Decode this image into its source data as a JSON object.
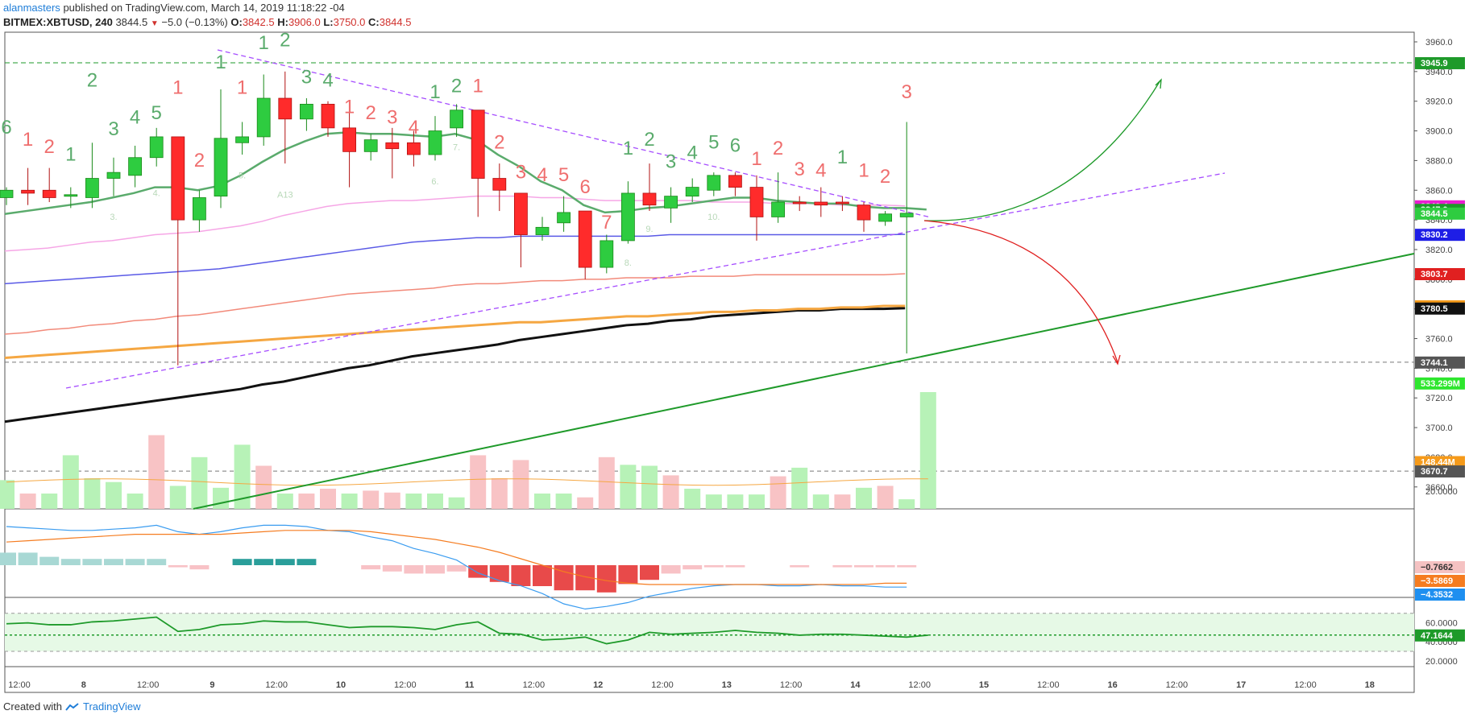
{
  "header": {
    "author": "alanmasters",
    "published": "published on TradingView.com, March 14, 2019 11:18:22 -04",
    "symbol": "BITMEX:XBTUSD, 240",
    "last": "3844.5",
    "change": "−5.0 (−0.13%)",
    "open_label": "O:",
    "open": "3842.5",
    "high_label": "H:",
    "high": "3906.0",
    "low_label": "L:",
    "low": "3750.0",
    "close_label": "C:",
    "close": "3844.5"
  },
  "footer": {
    "created_with": "Created with",
    "brand": "TradingView"
  },
  "colors": {
    "up": "#2ecc40",
    "down": "#ff2b2b",
    "ema_green": "#5aab6c",
    "ema_pink": "#f6a6e6",
    "ema_blue": "#5a5ae6",
    "ema_salmon": "#f28a7a",
    "ema_orange": "#f5a742",
    "ema_black": "#111111",
    "trend": "#1f9a2a",
    "dashed_purple": "#a64dff",
    "td_green": "#5aab6c",
    "td_red": "#ef6e6e"
  },
  "chart_data": {
    "type": "candlestick",
    "y_range": [
      3650,
      3965
    ],
    "y_ticks": [
      "3960.0",
      "3940.0",
      "3920.0",
      "3900.0",
      "3880.0",
      "3860.0",
      "3840.0",
      "3820.0",
      "3800.0",
      "3780.0",
      "3760.0",
      "3740.0",
      "3720.0",
      "3700.0",
      "3680.0",
      "3660.0"
    ],
    "x_ticks": [
      "12:00",
      "8",
      "12:00",
      "9",
      "12:00",
      "10",
      "12:00",
      "11",
      "12:00",
      "12",
      "12:00",
      "13",
      "12:00",
      "14",
      "12:00",
      "15",
      "12:00",
      "16",
      "12:00",
      "17",
      "12:00",
      "18"
    ],
    "price_tags": [
      {
        "text": "3945.9",
        "price": 3945.9,
        "color": "#1e9a2a"
      },
      {
        "text": "3849.4",
        "price": 3849.4,
        "color": "#e91ed0"
      },
      {
        "text": "3847.0",
        "price": 3847.0,
        "color": "#1e9a2a"
      },
      {
        "text": "3844.5",
        "price": 3844.5,
        "color": "#2ecc40"
      },
      {
        "text": "3830.2",
        "price": 3830.2,
        "color": "#1e1ee6"
      },
      {
        "text": "3803.7",
        "price": 3803.7,
        "color": "#e02020"
      },
      {
        "text": "3782.0",
        "price": 3782.0,
        "color": "#f59a1a"
      },
      {
        "text": "3780.5",
        "price": 3780.5,
        "color": "#111111"
      },
      {
        "text": "3744.1",
        "price": 3744.1,
        "color": "#555555"
      },
      {
        "text": "533.299M",
        "price": 3730.0,
        "color": "#2ee62e"
      },
      {
        "text": "148.44M",
        "price": 3677.0,
        "color": "#f59a1a"
      },
      {
        "text": "3670.7",
        "price": 3670.7,
        "color": "#555555"
      }
    ],
    "candles": [
      {
        "x": 0,
        "o": 3855,
        "h": 3862,
        "l": 3850,
        "c": 3860
      },
      {
        "x": 1,
        "o": 3860,
        "h": 3875,
        "l": 3850,
        "c": 3858
      },
      {
        "x": 2,
        "o": 3860,
        "h": 3875,
        "l": 3852,
        "c": 3855
      },
      {
        "x": 3,
        "o": 3856,
        "h": 3862,
        "l": 3848,
        "c": 3857
      },
      {
        "x": 4,
        "o": 3855,
        "h": 3892,
        "l": 3848,
        "c": 3868
      },
      {
        "x": 5,
        "o": 3868,
        "h": 3882,
        "l": 3856,
        "c": 3872
      },
      {
        "x": 6,
        "o": 3870,
        "h": 3890,
        "l": 3862,
        "c": 3882
      },
      {
        "x": 7,
        "o": 3882,
        "h": 3902,
        "l": 3876,
        "c": 3896
      },
      {
        "x": 8,
        "o": 3896,
        "h": 3896,
        "l": 3742,
        "c": 3840
      },
      {
        "x": 9,
        "o": 3840,
        "h": 3860,
        "l": 3832,
        "c": 3855
      },
      {
        "x": 10,
        "o": 3856,
        "h": 3928,
        "l": 3848,
        "c": 3895
      },
      {
        "x": 11,
        "o": 3892,
        "h": 3906,
        "l": 3884,
        "c": 3896
      },
      {
        "x": 12,
        "o": 3896,
        "h": 3938,
        "l": 3890,
        "c": 3922
      },
      {
        "x": 13,
        "o": 3922,
        "h": 3940,
        "l": 3878,
        "c": 3908
      },
      {
        "x": 14,
        "o": 3908,
        "h": 3922,
        "l": 3900,
        "c": 3918
      },
      {
        "x": 15,
        "o": 3918,
        "h": 3920,
        "l": 3896,
        "c": 3902
      },
      {
        "x": 16,
        "o": 3902,
        "h": 3914,
        "l": 3862,
        "c": 3886
      },
      {
        "x": 17,
        "o": 3886,
        "h": 3898,
        "l": 3880,
        "c": 3894
      },
      {
        "x": 18,
        "o": 3892,
        "h": 3902,
        "l": 3868,
        "c": 3888
      },
      {
        "x": 19,
        "o": 3892,
        "h": 3900,
        "l": 3876,
        "c": 3884
      },
      {
        "x": 20,
        "o": 3884,
        "h": 3910,
        "l": 3880,
        "c": 3900
      },
      {
        "x": 21,
        "o": 3902,
        "h": 3918,
        "l": 3896,
        "c": 3914
      },
      {
        "x": 22,
        "o": 3914,
        "h": 3914,
        "l": 3842,
        "c": 3868
      },
      {
        "x": 23,
        "o": 3868,
        "h": 3878,
        "l": 3846,
        "c": 3860
      },
      {
        "x": 24,
        "o": 3858,
        "h": 3858,
        "l": 3808,
        "c": 3830
      },
      {
        "x": 25,
        "o": 3830,
        "h": 3842,
        "l": 3826,
        "c": 3835
      },
      {
        "x": 26,
        "o": 3838,
        "h": 3856,
        "l": 3832,
        "c": 3845
      },
      {
        "x": 27,
        "o": 3846,
        "h": 3846,
        "l": 3800,
        "c": 3808
      },
      {
        "x": 28,
        "o": 3808,
        "h": 3830,
        "l": 3804,
        "c": 3826
      },
      {
        "x": 29,
        "o": 3826,
        "h": 3866,
        "l": 3824,
        "c": 3858
      },
      {
        "x": 30,
        "o": 3858,
        "h": 3878,
        "l": 3846,
        "c": 3850
      },
      {
        "x": 31,
        "o": 3848,
        "h": 3862,
        "l": 3838,
        "c": 3856
      },
      {
        "x": 32,
        "o": 3856,
        "h": 3868,
        "l": 3852,
        "c": 3862
      },
      {
        "x": 33,
        "o": 3860,
        "h": 3872,
        "l": 3856,
        "c": 3870
      },
      {
        "x": 34,
        "o": 3870,
        "h": 3872,
        "l": 3856,
        "c": 3862
      },
      {
        "x": 35,
        "o": 3862,
        "h": 3870,
        "l": 3826,
        "c": 3842
      },
      {
        "x": 36,
        "o": 3842,
        "h": 3872,
        "l": 3838,
        "c": 3852
      },
      {
        "x": 37,
        "o": 3852,
        "h": 3856,
        "l": 3846,
        "c": 3851
      },
      {
        "x": 38,
        "o": 3852,
        "h": 3862,
        "l": 3842,
        "c": 3850
      },
      {
        "x": 39,
        "o": 3852,
        "h": 3856,
        "l": 3846,
        "c": 3851
      },
      {
        "x": 40,
        "o": 3850,
        "h": 3852,
        "l": 3832,
        "c": 3840
      },
      {
        "x": 41,
        "o": 3839,
        "h": 3846,
        "l": 3836,
        "c": 3844
      },
      {
        "x": 42,
        "o": 3842,
        "h": 3906,
        "l": 3750,
        "c": 3844.5
      }
    ],
    "td_labels": [
      {
        "x": 0,
        "text": "6",
        "color": "g",
        "price": 3898
      },
      {
        "x": 1,
        "text": "1",
        "color": "r",
        "price": 3890
      },
      {
        "x": 2,
        "text": "2",
        "color": "r",
        "price": 3885
      },
      {
        "x": 3,
        "text": "1",
        "color": "g",
        "price": 3880
      },
      {
        "x": 4,
        "text": "2",
        "color": "g",
        "price": 3930
      },
      {
        "x": 5,
        "text": "3",
        "color": "g",
        "price": 3897
      },
      {
        "x": 6,
        "text": "4",
        "color": "g",
        "price": 3905
      },
      {
        "x": 7,
        "text": "5",
        "color": "g",
        "price": 3908
      },
      {
        "x": 8,
        "text": "1",
        "color": "r",
        "price": 3925
      },
      {
        "x": 9,
        "text": "2",
        "color": "r",
        "price": 3876
      },
      {
        "x": 10,
        "text": "1",
        "color": "g",
        "price": 3942
      },
      {
        "x": 11,
        "text": "1",
        "color": "r",
        "price": 3925
      },
      {
        "x": 12,
        "text": "1",
        "color": "g",
        "price": 3955
      },
      {
        "x": 13,
        "text": "2",
        "color": "g",
        "price": 3957
      },
      {
        "x": 14,
        "text": "3",
        "color": "g",
        "price": 3932
      },
      {
        "x": 15,
        "text": "4",
        "color": "g",
        "price": 3930
      },
      {
        "x": 16,
        "text": "1",
        "color": "r",
        "price": 3912
      },
      {
        "x": 17,
        "text": "2",
        "color": "r",
        "price": 3908
      },
      {
        "x": 18,
        "text": "3",
        "color": "r",
        "price": 3905
      },
      {
        "x": 19,
        "text": "4",
        "color": "r",
        "price": 3898
      },
      {
        "x": 20,
        "text": "1",
        "color": "g",
        "price": 3922
      },
      {
        "x": 21,
        "text": "2",
        "color": "g",
        "price": 3926
      },
      {
        "x": 22,
        "text": "1",
        "color": "r",
        "price": 3926
      },
      {
        "x": 23,
        "text": "2",
        "color": "r",
        "price": 3888
      },
      {
        "x": 24,
        "text": "3",
        "color": "r",
        "price": 3868
      },
      {
        "x": 25,
        "text": "4",
        "color": "r",
        "price": 3866
      },
      {
        "x": 26,
        "text": "5",
        "color": "r",
        "price": 3866
      },
      {
        "x": 27,
        "text": "6",
        "color": "r",
        "price": 3858
      },
      {
        "x": 28,
        "text": "7",
        "color": "r",
        "price": 3834
      },
      {
        "x": 29,
        "text": "1",
        "color": "g",
        "price": 3884
      },
      {
        "x": 30,
        "text": "2",
        "color": "g",
        "price": 3890
      },
      {
        "x": 31,
        "text": "3",
        "color": "g",
        "price": 3875
      },
      {
        "x": 32,
        "text": "4",
        "color": "g",
        "price": 3881
      },
      {
        "x": 33,
        "text": "5",
        "color": "g",
        "price": 3888
      },
      {
        "x": 34,
        "text": "6",
        "color": "g",
        "price": 3886
      },
      {
        "x": 35,
        "text": "1",
        "color": "r",
        "price": 3877
      },
      {
        "x": 36,
        "text": "2",
        "color": "r",
        "price": 3884
      },
      {
        "x": 37,
        "text": "3",
        "color": "r",
        "price": 3870
      },
      {
        "x": 38,
        "text": "4",
        "color": "r",
        "price": 3869
      },
      {
        "x": 39,
        "text": "1",
        "color": "g",
        "price": 3878
      },
      {
        "x": 40,
        "text": "1",
        "color": "r",
        "price": 3869
      },
      {
        "x": 41,
        "text": "2",
        "color": "r",
        "price": 3865
      },
      {
        "x": 42,
        "text": "3",
        "color": "r",
        "price": 3922
      }
    ],
    "small_labels": [
      {
        "x": 5,
        "text": "3.",
        "price": 3840
      },
      {
        "x": 7,
        "text": "4.",
        "price": 3856
      },
      {
        "x": 11,
        "text": "5.",
        "price": 3868
      },
      {
        "x": 13,
        "text": "A13",
        "price": 3855
      },
      {
        "x": 20,
        "text": "6.",
        "price": 3864
      },
      {
        "x": 21,
        "text": "7.",
        "price": 3887
      },
      {
        "x": 30,
        "text": "9.",
        "price": 3832
      },
      {
        "x": 29,
        "text": "8.",
        "price": 3809
      },
      {
        "x": 33,
        "text": "10.",
        "price": 3840
      }
    ],
    "ema_green": [
      3844,
      3846,
      3848,
      3850,
      3852,
      3855,
      3858,
      3862,
      3862,
      3860,
      3863,
      3870,
      3879,
      3887,
      3893,
      3898,
      3899,
      3898,
      3898,
      3897,
      3896,
      3898,
      3894,
      3884,
      3876,
      3866,
      3860,
      3850,
      3845,
      3846,
      3848,
      3849,
      3851,
      3853,
      3855,
      3855,
      3853,
      3852,
      3851,
      3851,
      3849,
      3848,
      3848,
      3847
    ],
    "ema_pink": [
      3819,
      3820,
      3821,
      3823,
      3825,
      3826,
      3828,
      3830,
      3831,
      3832,
      3834,
      3836,
      3839,
      3843,
      3846,
      3849,
      3851,
      3852,
      3853,
      3853,
      3854,
      3855,
      3856,
      3856,
      3856,
      3855,
      3855,
      3854,
      3853,
      3853,
      3853,
      3853,
      3853,
      3852,
      3852,
      3852,
      3851,
      3851,
      3851,
      3850,
      3850,
      3850,
      3849.4
    ],
    "ema_blue": [
      3797,
      3798,
      3799,
      3800,
      3801,
      3802,
      3803,
      3804,
      3805,
      3806,
      3807,
      3809,
      3811,
      3813,
      3815,
      3817,
      3819,
      3821,
      3823,
      3825,
      3826,
      3827,
      3828,
      3828,
      3829,
      3829,
      3829,
      3829,
      3829,
      3829,
      3829,
      3830,
      3830,
      3830,
      3830,
      3830,
      3830,
      3830,
      3830,
      3830,
      3830,
      3830,
      3830.2
    ],
    "ema_salmon": [
      3763,
      3764,
      3766,
      3767,
      3769,
      3770,
      3772,
      3773,
      3775,
      3776,
      3778,
      3780,
      3782,
      3784,
      3786,
      3788,
      3790,
      3791,
      3792,
      3793,
      3794,
      3796,
      3797,
      3797,
      3798,
      3799,
      3799,
      3800,
      3800,
      3801,
      3801,
      3801,
      3802,
      3802,
      3802,
      3803,
      3803,
      3803,
      3803,
      3803,
      3803,
      3803,
      3803.7
    ],
    "ema_orange": [
      3747,
      3748,
      3749,
      3750,
      3751,
      3752,
      3753,
      3754,
      3755,
      3756,
      3757,
      3758,
      3759,
      3760,
      3761,
      3762,
      3763,
      3764,
      3765,
      3766,
      3767,
      3768,
      3769,
      3770,
      3771,
      3771,
      3772,
      3773,
      3774,
      3775,
      3775,
      3776,
      3777,
      3778,
      3778,
      3779,
      3779,
      3780,
      3780,
      3781,
      3781,
      3782,
      3782.0
    ],
    "ema_black": [
      3704,
      3706,
      3708,
      3710,
      3712,
      3714,
      3716,
      3718,
      3720,
      3722,
      3724,
      3726,
      3729,
      3731,
      3734,
      3737,
      3740,
      3742,
      3745,
      3748,
      3750,
      3752,
      3754,
      3756,
      3759,
      3761,
      3763,
      3765,
      3767,
      3769,
      3770,
      3772,
      3773,
      3775,
      3776,
      3777,
      3778,
      3779,
      3779,
      3780,
      3780,
      3780,
      3780.5
    ],
    "volume": [
      3,
      1.6,
      1.6,
      5.6,
      3.2,
      2.8,
      1.6,
      7.7,
      2.4,
      5.4,
      2.2,
      6.7,
      4.5,
      1.6,
      1.6,
      2.1,
      1.6,
      1.9,
      1.7,
      1.6,
      1.6,
      1.2,
      5.6,
      3.2,
      5.1,
      1.6,
      1.6,
      1.2,
      5.4,
      4.6,
      4.5,
      3.5,
      2.1,
      1.5,
      1.5,
      1.5,
      3.4,
      4.3,
      1.5,
      1.5,
      2.2,
      2.4,
      1,
      12.2
    ],
    "volume_dir": [
      "u",
      "d",
      "u",
      "u",
      "u",
      "u",
      "u",
      "d",
      "u",
      "u",
      "u",
      "u",
      "d",
      "u",
      "d",
      "d",
      "u",
      "d",
      "d",
      "u",
      "u",
      "u",
      "d",
      "d",
      "d",
      "u",
      "u",
      "d",
      "d",
      "u",
      "u",
      "d",
      "u",
      "u",
      "u",
      "u",
      "d",
      "u",
      "u",
      "d",
      "u",
      "d",
      "u",
      "u"
    ],
    "macd": {
      "ticks": [
        "20.0000"
      ],
      "tags": [
        {
          "text": "−0.7662",
          "color": "#f5c2c2",
          "tc": "#333"
        },
        {
          "text": "−3.5869",
          "color": "#f57c20",
          "tc": "#fff"
        },
        {
          "text": "−4.3532",
          "color": "#1e8ff0",
          "tc": "#fff"
        }
      ]
    },
    "rsi": {
      "ticks": [
        "60.0000",
        "40.0000",
        "20.0000"
      ],
      "tag": "47.1644",
      "values": [
        59,
        60,
        58,
        58,
        61,
        62,
        64,
        66,
        51,
        53,
        58,
        59,
        62,
        61,
        61,
        58,
        55,
        56,
        56,
        55,
        53,
        58,
        61,
        49,
        48,
        42,
        43,
        45,
        38,
        42,
        50,
        48,
        49,
        50,
        52,
        50,
        49,
        47,
        48,
        48,
        47,
        46,
        45,
        47
      ]
    }
  }
}
